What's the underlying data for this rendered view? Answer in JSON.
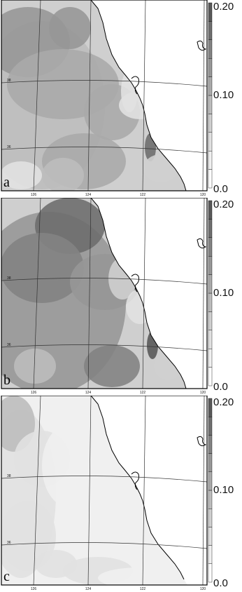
{
  "figure": {
    "colorbar": {
      "labels": [
        "0.20",
        "0.10",
        "0.0"
      ],
      "range": [
        0.0,
        0.2
      ],
      "shades": [
        "#ffffff",
        "#f0f0f0",
        "#e1e1e1",
        "#cfcfcf",
        "#bdbdbd",
        "#aaaaaa",
        "#979797",
        "#838383",
        "#6e6e6e",
        "#595959"
      ]
    },
    "lon_ticks": [
      "126",
      "124",
      "122",
      "120"
    ],
    "lat_ticks": [
      "38",
      "36"
    ],
    "panels": [
      {
        "letter": "a"
      },
      {
        "letter": "b"
      },
      {
        "letter": "c"
      }
    ]
  }
}
